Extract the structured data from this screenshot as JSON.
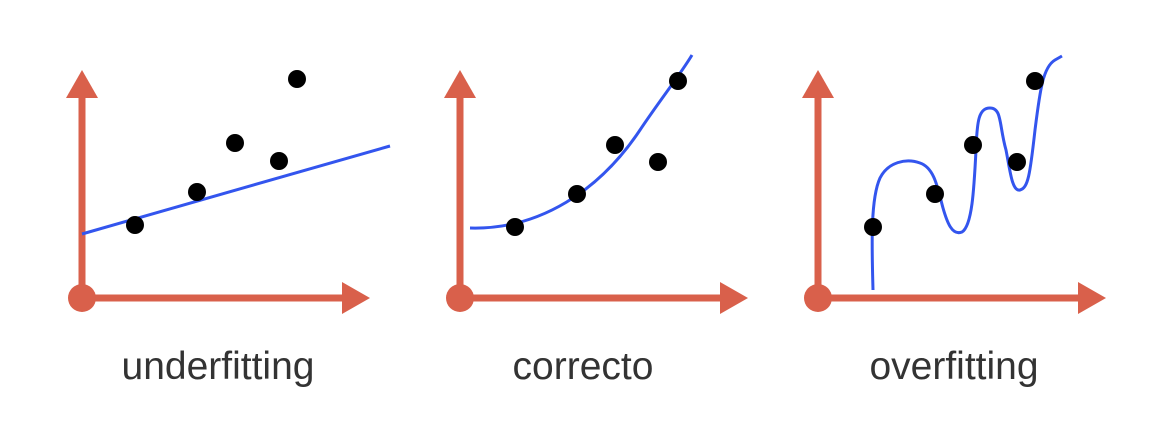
{
  "colors": {
    "axis": "#d9604b",
    "fit_line": "#3355ee",
    "points": "#000000",
    "caption": "#333333",
    "background": "#ffffff"
  },
  "panels": [
    {
      "caption": "underfitting",
      "fit": "linear",
      "points": [
        [
          1.0,
          1.2
        ],
        [
          2.2,
          2.3
        ],
        [
          2.9,
          4.1
        ],
        [
          3.7,
          3.1
        ],
        [
          4.1,
          5.7
        ]
      ]
    },
    {
      "caption": "correcto",
      "fit": "polynomial",
      "points": [
        [
          1.0,
          1.2
        ],
        [
          2.2,
          2.3
        ],
        [
          2.9,
          4.1
        ],
        [
          3.7,
          3.1
        ],
        [
          4.1,
          5.7
        ]
      ]
    },
    {
      "caption": "overfitting",
      "fit": "interpolating",
      "points": [
        [
          1.0,
          1.2
        ],
        [
          2.2,
          2.3
        ],
        [
          2.9,
          4.1
        ],
        [
          3.7,
          3.1
        ],
        [
          4.1,
          5.7
        ]
      ]
    }
  ]
}
